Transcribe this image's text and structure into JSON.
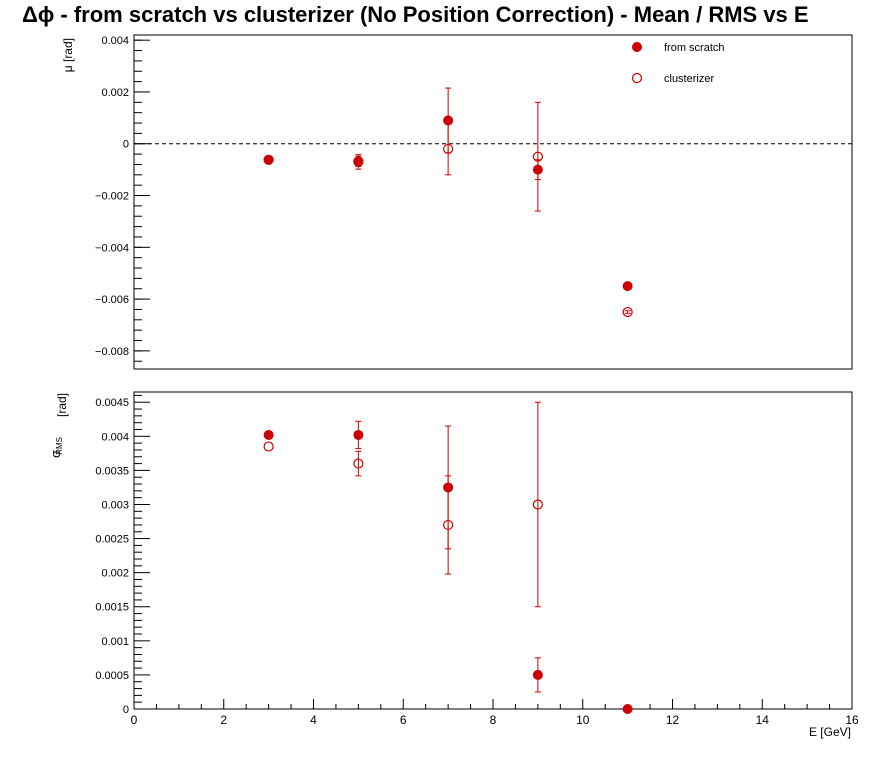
{
  "title": "Δϕ  -  from scratch vs clusterizer  (No Position Correction)  -  Mean / RMS vs E",
  "chart_data": [
    {
      "type": "scatter",
      "panel": "mean",
      "ylabel": "μ  [rad]",
      "xlim": [
        0,
        16
      ],
      "ylim": [
        -0.0087,
        0.0042
      ],
      "y_ticks": [
        0.004,
        0.002,
        0,
        -0.002,
        -0.004,
        -0.006,
        -0.008
      ],
      "y_tick_labels": [
        "0.004",
        "0.002",
        "0",
        "−0.002",
        "−0.004",
        "−0.006",
        "−0.008"
      ],
      "reference_line": 0,
      "legend_placement": "top-right",
      "series": [
        {
          "name": "from scratch",
          "marker": "filled-circle",
          "color": "#cc0000",
          "x": [
            3,
            5,
            7,
            9,
            11
          ],
          "y": [
            -0.00062,
            -0.0007,
            0.0009,
            -0.001,
            -0.0055
          ],
          "yerr": [
            8e-05,
            0.00028,
            0.00125,
            0.00038,
            5e-05
          ]
        },
        {
          "name": "clusterizer",
          "marker": "open-circle",
          "color": "#cc0000",
          "x": [
            3,
            5,
            7,
            9,
            11
          ],
          "y": [
            -0.00062,
            -0.00068,
            -0.0002,
            -0.0005,
            -0.0065
          ],
          "yerr": [
            8e-05,
            0.0002,
            0.001,
            0.0021,
            5e-05
          ]
        }
      ]
    },
    {
      "type": "scatter",
      "panel": "rms",
      "ylabel_main": "σ",
      "ylabel_sub": "RMS",
      "ylabel_unit": "[rad]",
      "xlabel": "E  [GeV]",
      "xlim": [
        0,
        16
      ],
      "ylim": [
        0,
        0.00465
      ],
      "x_ticks": [
        0,
        2,
        4,
        6,
        8,
        10,
        12,
        14,
        16
      ],
      "x_tick_labels": [
        "0",
        "2",
        "4",
        "6",
        "8",
        "10",
        "12",
        "14",
        "16"
      ],
      "y_ticks": [
        0,
        0.0005,
        0.001,
        0.0015,
        0.002,
        0.0025,
        0.003,
        0.0035,
        0.004,
        0.0045
      ],
      "y_tick_labels": [
        "0",
        "0.0005",
        "0.001",
        "0.0015",
        "0.002",
        "0.0025",
        "0.003",
        "0.0035",
        "0.004",
        "0.0045"
      ],
      "series": [
        {
          "name": "from scratch",
          "marker": "filled-circle",
          "color": "#cc0000",
          "x": [
            3,
            5,
            7,
            9,
            11
          ],
          "y": [
            0.00402,
            0.00402,
            0.00325,
            0.0005,
            0.0
          ],
          "yerr": [
            4e-05,
            0.0002,
            0.0009,
            0.00025,
            1e-05
          ]
        },
        {
          "name": "clusterizer",
          "marker": "open-circle",
          "color": "#cc0000",
          "x": [
            3,
            5,
            7,
            9
          ],
          "y": [
            0.00385,
            0.0036,
            0.0027,
            0.003
          ],
          "yerr": [
            1e-05,
            0.00018,
            0.00072,
            0.0015
          ]
        }
      ]
    }
  ]
}
